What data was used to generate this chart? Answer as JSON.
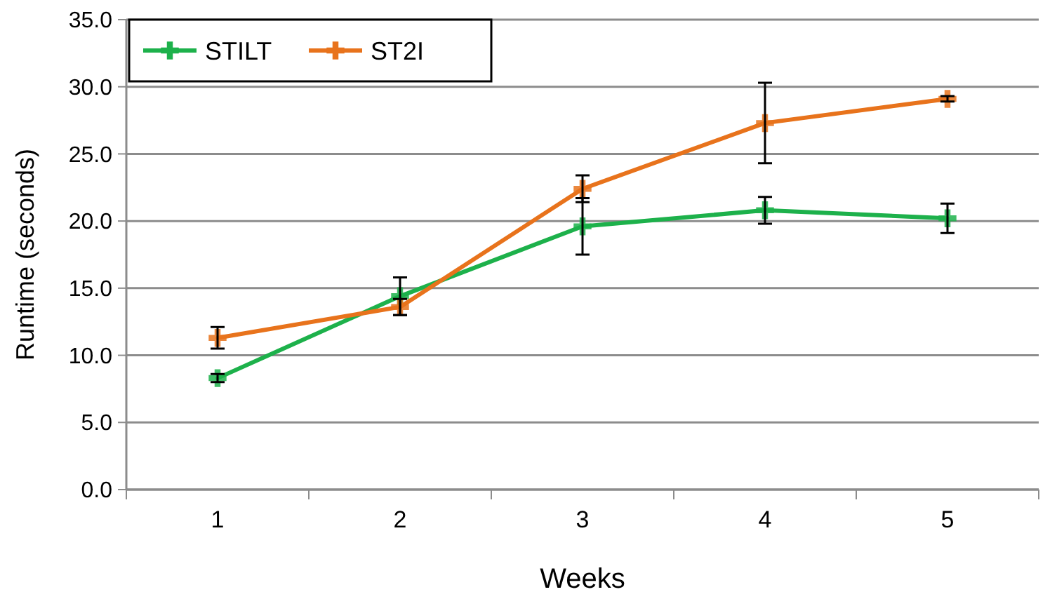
{
  "chart_data": {
    "type": "line",
    "xlabel": "Weeks",
    "ylabel": "Runtime (seconds)",
    "categories": [
      "1",
      "2",
      "3",
      "4",
      "5"
    ],
    "ylim": [
      0,
      35
    ],
    "yticks": [
      {
        "value": 0,
        "label": "0.0"
      },
      {
        "value": 5,
        "label": "5.0"
      },
      {
        "value": 10,
        "label": "10.0"
      },
      {
        "value": 15,
        "label": "15.0"
      },
      {
        "value": 20,
        "label": "20.0"
      },
      {
        "value": 25,
        "label": "25.0"
      },
      {
        "value": 30,
        "label": "30.0"
      },
      {
        "value": 35,
        "label": "35.0"
      }
    ],
    "grid": "y",
    "legend": "top left",
    "series": [
      {
        "name": "STILT",
        "color": "#1db14b",
        "marker": "cross",
        "values": [
          8.3,
          14.4,
          19.6,
          20.8,
          20.2
        ],
        "errors": [
          0.3,
          1.4,
          2.1,
          1.0,
          1.1
        ]
      },
      {
        "name": "ST2I",
        "color": "#e8731c",
        "marker": "cross",
        "values": [
          11.3,
          13.6,
          22.4,
          27.3,
          29.1
        ],
        "errors": [
          0.8,
          0.6,
          1.0,
          3.0,
          0.2
        ]
      }
    ]
  }
}
